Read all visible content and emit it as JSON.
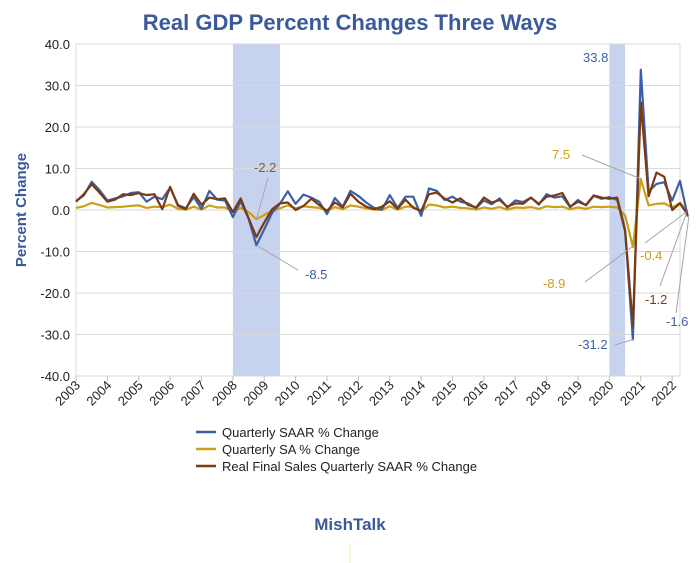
{
  "chart_data": {
    "type": "line",
    "title": "Real GDP Percent Changes Three Ways",
    "ylabel": "Percent Change",
    "xlabel": "",
    "ylim": [
      -40,
      40
    ],
    "yticks": [
      "40.0",
      "30.0",
      "20.0",
      "10.0",
      "0.0",
      "-10.0",
      "-20.0",
      "-30.0",
      "-40.0"
    ],
    "ytick_values": [
      40,
      30,
      20,
      10,
      0,
      -10,
      -20,
      -30,
      -40
    ],
    "x_start_year": 2003,
    "x_end_year": 2022,
    "xticks": [
      "2003",
      "2004",
      "2005",
      "2006",
      "2007",
      "2008",
      "2009",
      "2010",
      "2011",
      "2012",
      "2013",
      "2014",
      "2015",
      "2016",
      "2017",
      "2018",
      "2019",
      "2020",
      "2021",
      "2022"
    ],
    "grid": "horizontal",
    "legend_position": "bottom",
    "recession_shading": [
      {
        "start": 2008.0,
        "end": 2009.5,
        "color": "#c7d3ee"
      },
      {
        "start": 2020.0,
        "end": 2020.5,
        "color": "#c7d3ee"
      }
    ],
    "series": [
      {
        "name": "Quarterly SAAR % Change",
        "color": "#3b5fa8",
        "values": [
          2.2,
          3.5,
          6.8,
          4.8,
          2.3,
          2.8,
          3.3,
          4.1,
          4.3,
          2.0,
          3.2,
          2.6,
          5.4,
          1.2,
          0.4,
          3.1,
          0.3,
          4.6,
          2.5,
          2.3,
          -1.7,
          2.1,
          -2.1,
          -8.5,
          -4.6,
          -0.7,
          1.5,
          4.5,
          1.5,
          3.7,
          3.0,
          2.0,
          -1.0,
          2.9,
          0.8,
          4.6,
          3.4,
          1.8,
          0.5,
          0.1,
          3.6,
          0.5,
          3.2,
          3.2,
          -1.4,
          5.2,
          4.6,
          2.4,
          3.2,
          2.0,
          1.6,
          0.5,
          2.3,
          1.4,
          2.8,
          0.6,
          2.3,
          1.9,
          3.0,
          1.3,
          3.8,
          3.0,
          3.3,
          0.7,
          2.4,
          1.1,
          3.4,
          2.7,
          3.1,
          2.4,
          -5.1,
          -31.2,
          33.8,
          4.5,
          6.3,
          6.7,
          2.3,
          7.0,
          -1.6
        ]
      },
      {
        "name": "Quarterly SA % Change",
        "color": "#c9a018",
        "values": [
          0.5,
          0.9,
          1.7,
          1.2,
          0.6,
          0.7,
          0.8,
          1.0,
          1.1,
          0.5,
          0.8,
          0.7,
          1.3,
          0.3,
          0.1,
          0.8,
          0.1,
          1.1,
          0.6,
          0.6,
          -0.4,
          0.5,
          -0.5,
          -2.2,
          -1.2,
          -0.2,
          0.4,
          1.1,
          0.4,
          0.9,
          0.7,
          0.5,
          -0.2,
          0.7,
          0.2,
          1.1,
          0.8,
          0.4,
          0.1,
          0.0,
          0.9,
          0.1,
          0.8,
          0.8,
          -0.4,
          1.3,
          1.1,
          0.6,
          0.8,
          0.5,
          0.4,
          0.1,
          0.6,
          0.3,
          0.7,
          0.1,
          0.6,
          0.5,
          0.7,
          0.3,
          0.9,
          0.7,
          0.8,
          0.2,
          0.6,
          0.3,
          0.8,
          0.7,
          0.8,
          0.6,
          -1.3,
          -8.9,
          7.5,
          1.1,
          1.5,
          1.6,
          0.6,
          1.7,
          -0.4
        ]
      },
      {
        "name": "Real Final Sales Quarterly SAAR % Change",
        "color": "#7b3a12",
        "values": [
          2.0,
          3.8,
          6.2,
          4.2,
          2.0,
          2.5,
          3.8,
          3.6,
          4.1,
          3.6,
          3.8,
          0.2,
          5.6,
          1.0,
          0.2,
          3.9,
          1.3,
          3.0,
          2.6,
          2.8,
          -0.5,
          2.8,
          -2.0,
          -6.5,
          -3.0,
          0.2,
          1.6,
          1.8,
          0.0,
          1.0,
          2.7,
          1.2,
          -0.2,
          1.8,
          0.6,
          3.9,
          2.0,
          0.8,
          0.2,
          0.8,
          2.1,
          0.3,
          2.5,
          0.5,
          -0.2,
          3.8,
          4.2,
          2.7,
          1.8,
          2.8,
          1.2,
          0.6,
          3.0,
          1.8,
          2.4,
          0.8,
          1.6,
          1.5,
          3.0,
          1.5,
          3.2,
          3.5,
          4.1,
          0.8,
          2.0,
          1.2,
          3.5,
          3.0,
          2.7,
          3.0,
          -4.8,
          -28.0,
          25.9,
          3.3,
          9.0,
          8.0,
          0.0,
          1.6,
          -1.2
        ]
      }
    ],
    "annotations": [
      {
        "text": "33.8",
        "color": "#3b5fa8"
      },
      {
        "text": "-2.2",
        "color": "#8a5a2a"
      },
      {
        "text": "-8.5",
        "color": "#3b5fa8"
      },
      {
        "text": "7.5",
        "color": "#c9a018"
      },
      {
        "text": "-0.4",
        "color": "#c9a018"
      },
      {
        "text": "-1.2",
        "color": "#7b3a12"
      },
      {
        "text": "-8.9",
        "color": "#c9a018"
      },
      {
        "text": "-31.2",
        "color": "#3b5fa8"
      },
      {
        "text": "-1.6",
        "color": "#3b5fa8"
      }
    ]
  },
  "branding": {
    "text": "MishTalk"
  }
}
